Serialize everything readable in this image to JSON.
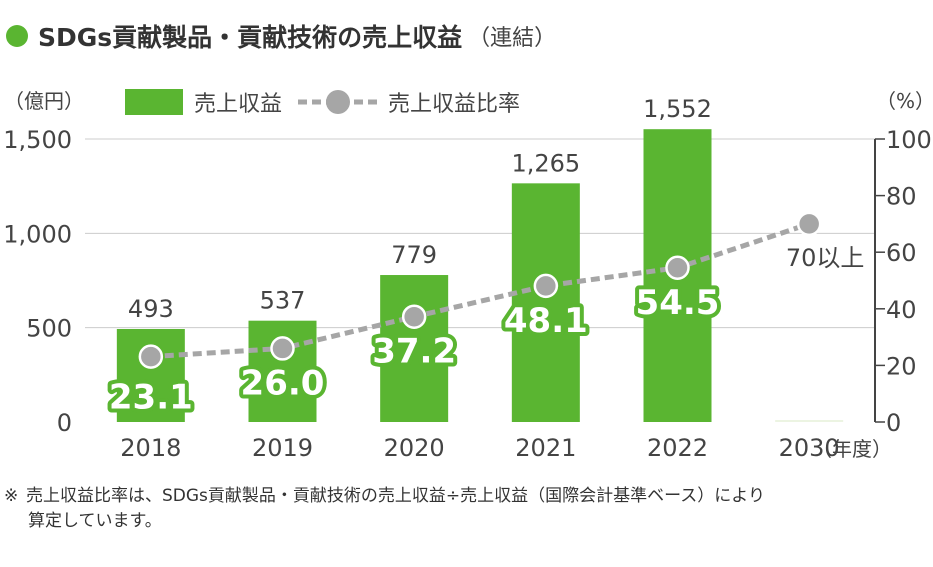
{
  "header": {
    "title": "SDGs貢献製品・貢献技術の売上収益",
    "suffix": "（連結）"
  },
  "note": {
    "mark": "※",
    "line1": "売上収益比率は、SDGs貢献製品・貢献技術の売上収益÷売上収益（国際会計基準ベース）により",
    "line2": "算定しています。"
  },
  "chart_data": {
    "type": "bar",
    "title": "",
    "categories": [
      "2018",
      "2019",
      "2020",
      "2021",
      "2022",
      "2030"
    ],
    "xlabel_suffix": "（年度）",
    "left_axis": {
      "label": "（億円）",
      "ticks": [
        "0",
        "500",
        "1,000",
        "1,500"
      ],
      "range": [
        0,
        1500
      ]
    },
    "right_axis": {
      "label": "（%）",
      "ticks": [
        "0",
        "20",
        "40",
        "60",
        "80",
        "100"
      ],
      "range": [
        0,
        100
      ]
    },
    "legend": {
      "bar_label": "売上収益",
      "line_label": "売上収益比率"
    },
    "series": [
      {
        "name": "売上収益",
        "type": "bar",
        "axis": "left",
        "values": [
          493,
          537,
          779,
          1265,
          1552,
          null
        ],
        "labels": [
          "493",
          "537",
          "779",
          "1,265",
          "1,552",
          ""
        ],
        "color": "#5ab531"
      },
      {
        "name": "売上収益比率",
        "type": "line",
        "axis": "right",
        "values": [
          23.1,
          26.0,
          37.2,
          48.1,
          54.5,
          70
        ],
        "labels": [
          "23.1",
          "26.0",
          "37.2",
          "48.1",
          "54.5",
          "70以上"
        ],
        "color": "#a6a6a6"
      }
    ],
    "legend_position": "top",
    "grid": true,
    "colors": {
      "bar": "#5ab531",
      "line": "#a6a6a6",
      "label_text": "#ffffff",
      "grid": "#cccccc"
    }
  }
}
